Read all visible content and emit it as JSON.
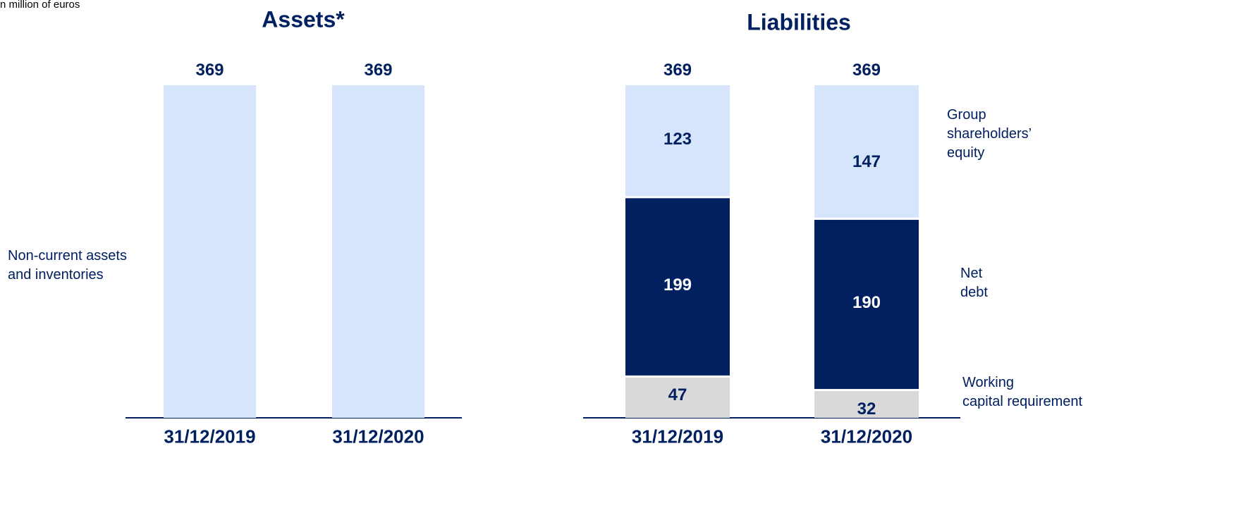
{
  "note_text": "n million of euros",
  "chart_data": [
    {
      "type": "bar",
      "title": "Assets*",
      "categories": [
        "31/12/2019",
        "31/12/2020"
      ],
      "series": [
        {
          "name": "Non-current assets\nand inventories",
          "color": "#d6e4fc",
          "values": [
            369,
            369
          ]
        }
      ],
      "totals": [
        369,
        369
      ]
    },
    {
      "type": "stacked_bar",
      "title": "Liabilities",
      "categories": [
        "31/12/2019",
        "31/12/2020"
      ],
      "series": [
        {
          "name": "Working\ncapital requirement",
          "color": "#d9d9d9",
          "values": [
            47,
            32
          ]
        },
        {
          "name": "Net\ndebt",
          "color": "#002060",
          "values": [
            199,
            190
          ]
        },
        {
          "name": "Group\nshareholders’\nequity",
          "color": "#d6e4fc",
          "values": [
            123,
            147
          ]
        }
      ],
      "totals": [
        369,
        369
      ]
    }
  ]
}
